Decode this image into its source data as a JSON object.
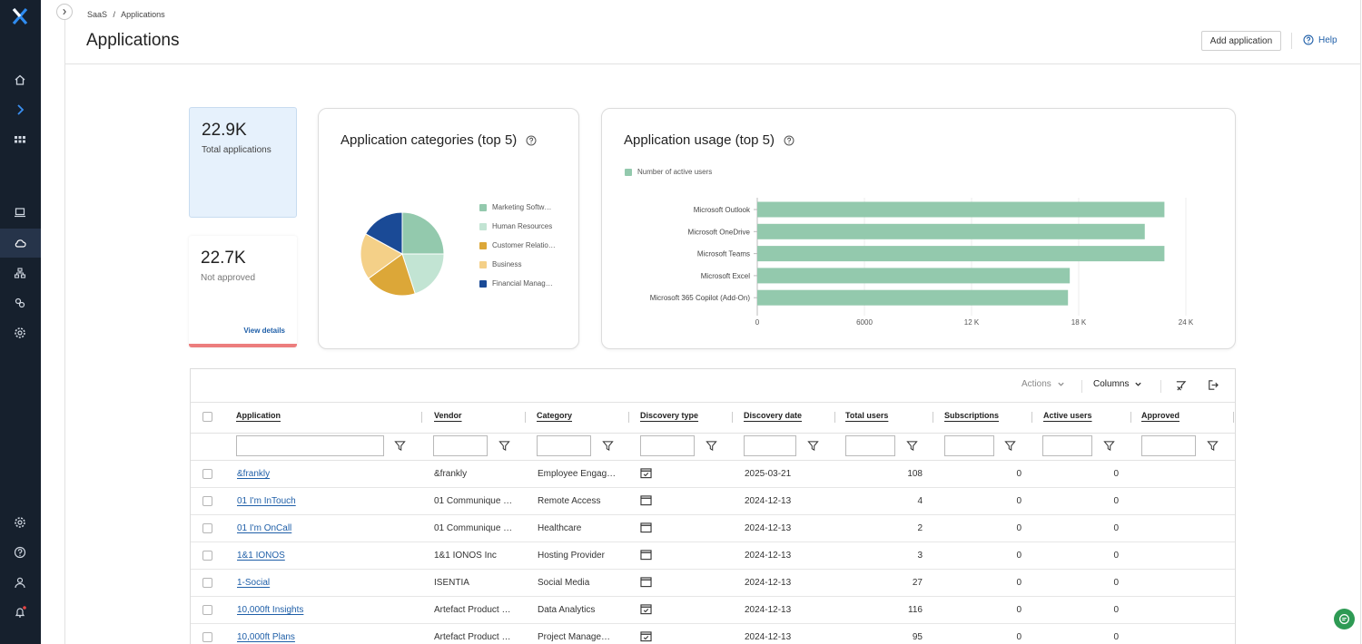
{
  "breadcrumb": [
    "SaaS",
    "/",
    "Applications"
  ],
  "page_title": "Applications",
  "header": {
    "add_label": "Add application",
    "help_label": "Help"
  },
  "stats": {
    "total": {
      "value": "22.9K",
      "label": "Total applications"
    },
    "not_approved": {
      "value": "22.7K",
      "label": "Not approved",
      "link": "View details"
    }
  },
  "categories_card": {
    "title": "Application categories (top 5)",
    "legend": [
      "Marketing Softw…",
      "Human Resources",
      "Customer Relatio…",
      "Business",
      "Financial Manag…"
    ],
    "colors": [
      "#93c9ad",
      "#c2e4d3",
      "#dca738",
      "#f4d088",
      "#1a4a96"
    ]
  },
  "usage_card": {
    "title": "Application usage (top 5)",
    "legend": "Number of active users",
    "ticks": [
      "0",
      "6000",
      "12 K",
      "18 K",
      "24 K"
    ],
    "color": "#93c9ad"
  },
  "chart_data": [
    {
      "type": "pie",
      "title": "Application categories (top 5)",
      "labels": [
        "Marketing Softw…",
        "Human Resources",
        "Customer Relatio…",
        "Business",
        "Financial Manag…"
      ],
      "values": [
        25,
        20,
        20,
        18,
        17
      ]
    },
    {
      "type": "bar",
      "title": "Application usage (top 5)",
      "categories": [
        "Microsoft Outlook",
        "Microsoft OneDrive",
        "Microsoft Teams",
        "Microsoft Excel",
        "Microsoft 365 Copilot (Add-On)"
      ],
      "series": [
        {
          "name": "Number of active users",
          "values": [
            22800,
            21700,
            22800,
            17500,
            17400
          ]
        }
      ],
      "xlim": [
        0,
        24000
      ]
    }
  ],
  "table": {
    "toolbar": {
      "actions": "Actions",
      "columns": "Columns"
    },
    "headers": [
      "Application",
      "Vendor",
      "Category",
      "Discovery type",
      "Discovery date",
      "Total users",
      "Subscriptions",
      "Active users",
      "Approved"
    ],
    "rows": [
      {
        "app": "&frankly",
        "vendor": "&frankly",
        "category": "Employee Engag…",
        "dtype": "check",
        "date": "2025-03-21",
        "total": "108",
        "subs": "0",
        "active": "0"
      },
      {
        "app": "01 I'm InTouch",
        "vendor": "01 Communique …",
        "category": "Remote Access",
        "dtype": "window",
        "date": "2024-12-13",
        "total": "4",
        "subs": "0",
        "active": "0"
      },
      {
        "app": "01 I'm OnCall",
        "vendor": "01 Communique …",
        "category": "Healthcare",
        "dtype": "window",
        "date": "2024-12-13",
        "total": "2",
        "subs": "0",
        "active": "0"
      },
      {
        "app": "1&1 IONOS",
        "vendor": "1&1 IONOS Inc",
        "category": "Hosting Provider",
        "dtype": "window",
        "date": "2024-12-13",
        "total": "3",
        "subs": "0",
        "active": "0"
      },
      {
        "app": "1-Social",
        "vendor": "ISENTIA",
        "category": "Social Media",
        "dtype": "window",
        "date": "2024-12-13",
        "total": "27",
        "subs": "0",
        "active": "0"
      },
      {
        "app": "10,000ft Insights",
        "vendor": "Artefact Product …",
        "category": "Data Analytics",
        "dtype": "check",
        "date": "2024-12-13",
        "total": "116",
        "subs": "0",
        "active": "0"
      },
      {
        "app": "10,000ft Plans",
        "vendor": "Artefact Product …",
        "category": "Project Manage…",
        "dtype": "check",
        "date": "2024-12-13",
        "total": "95",
        "subs": "0",
        "active": "0"
      }
    ]
  }
}
